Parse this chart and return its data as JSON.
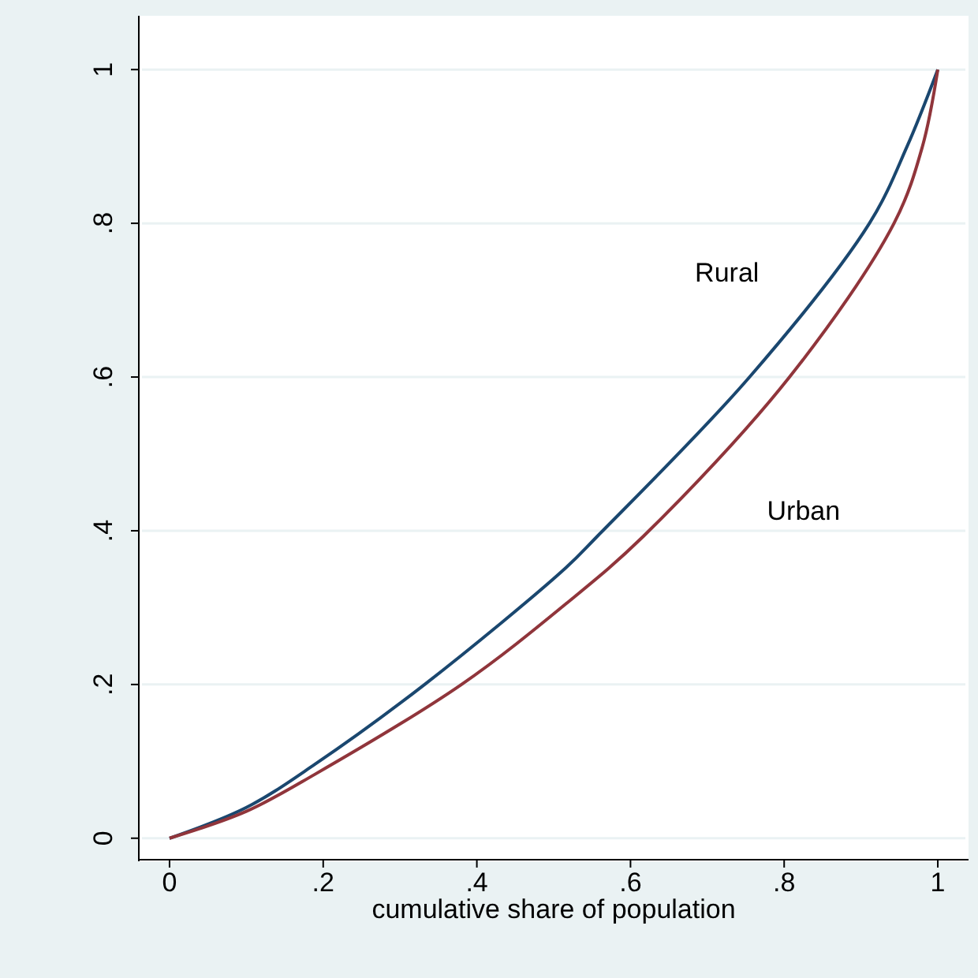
{
  "chart_data": {
    "type": "line",
    "xlabel": "cumulative share of population",
    "xlim": [
      -0.04,
      1.04
    ],
    "ylim": [
      -0.03,
      1.07
    ],
    "xticks": [
      {
        "value": 0,
        "label": "0"
      },
      {
        "value": 0.2,
        "label": ".2"
      },
      {
        "value": 0.4,
        "label": ".4"
      },
      {
        "value": 0.6,
        "label": ".6"
      },
      {
        "value": 0.8,
        "label": ".8"
      },
      {
        "value": 1,
        "label": "1"
      }
    ],
    "yticks": [
      {
        "value": 0,
        "label": "0"
      },
      {
        "value": 0.2,
        "label": ".2"
      },
      {
        "value": 0.4,
        "label": ".4"
      },
      {
        "value": 0.6,
        "label": ".6"
      },
      {
        "value": 0.8,
        "label": ".8"
      },
      {
        "value": 1,
        "label": "1"
      }
    ],
    "grid": "y",
    "legend": false,
    "marker": "none",
    "line_style": "solid",
    "series": [
      {
        "name": "Rural",
        "color": "#1a476f",
        "x": [
          0,
          0.1,
          0.189,
          0.332,
          0.516,
          0.557,
          0.755,
          0.911,
          0.96,
          1
        ],
        "values": [
          0,
          0.04,
          0.096,
          0.2,
          0.352,
          0.393,
          0.6,
          0.8,
          0.9,
          1
        ]
      },
      {
        "name": "Urban",
        "color": "#90353b",
        "x": [
          0,
          0.1,
          0.189,
          0.38,
          0.516,
          0.617,
          0.807,
          0.943,
          0.98,
          1
        ],
        "values": [
          0,
          0.035,
          0.083,
          0.2,
          0.305,
          0.393,
          0.6,
          0.8,
          0.9,
          1
        ]
      }
    ]
  }
}
